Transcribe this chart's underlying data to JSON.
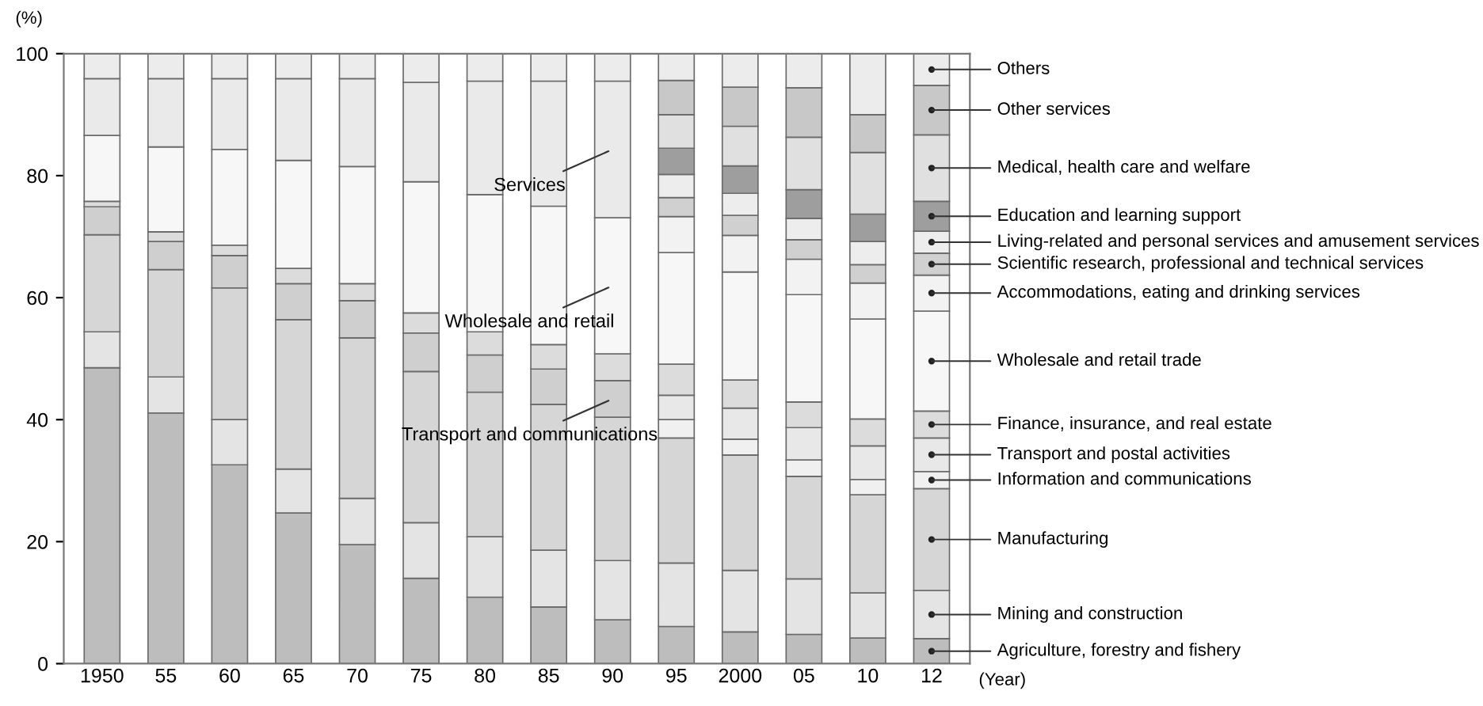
{
  "chart_data": {
    "type": "bar",
    "stacked": true,
    "ylabel": "(%)",
    "xlabel": "(Year)",
    "categories": [
      "1950",
      "55",
      "60",
      "65",
      "70",
      "75",
      "80",
      "85",
      "90",
      "95",
      "2000",
      "05",
      "10",
      "12"
    ],
    "ylim": [
      0,
      100
    ],
    "yticks": [
      0,
      20,
      40,
      60,
      80,
      100
    ],
    "grid": false,
    "series": [
      {
        "name": "Agriculture, forestry and fishery",
        "color": "#bdbdbd",
        "values": [
          48.5,
          41.1,
          32.6,
          24.7,
          19.5,
          14.0,
          10.9,
          9.3,
          7.2,
          6.1,
          5.2,
          4.8,
          4.2,
          4.1
        ]
      },
      {
        "name": "Mining and construction",
        "color": "#e4e4e4",
        "values": [
          5.9,
          5.9,
          7.4,
          7.2,
          7.6,
          9.1,
          9.9,
          9.3,
          9.7,
          10.4,
          10.1,
          9.1,
          7.4,
          7.9
        ]
      },
      {
        "name": "Manufacturing",
        "color": "#d6d6d6",
        "values": [
          15.9,
          17.6,
          21.6,
          24.5,
          26.3,
          24.8,
          23.7,
          23.9,
          23.5,
          20.5,
          18.9,
          16.8,
          16.1,
          16.7
        ]
      },
      {
        "name": "Transport and communications",
        "color": "#cfcfcf",
        "values": [
          4.6,
          4.6,
          5.3,
          5.9,
          6.1,
          6.3,
          6.1,
          5.8,
          6.0,
          null,
          null,
          null,
          null,
          null
        ]
      },
      {
        "name": "Information and communications",
        "color": "#f0f0f0",
        "values": [
          null,
          null,
          null,
          null,
          null,
          null,
          null,
          null,
          null,
          3.0,
          2.6,
          2.7,
          2.5,
          2.8
        ]
      },
      {
        "name": "Transport and postal activities",
        "color": "#e8e8e8",
        "values": [
          null,
          null,
          null,
          null,
          null,
          null,
          null,
          null,
          null,
          4.0,
          5.1,
          5.3,
          5.5,
          5.5
        ]
      },
      {
        "name": "Finance, insurance, and real estate",
        "color": "#dcdcdc",
        "values": [
          0.9,
          1.6,
          1.7,
          2.5,
          2.8,
          3.3,
          3.8,
          4.0,
          4.4,
          5.1,
          4.6,
          4.2,
          4.4,
          4.4
        ]
      },
      {
        "name": "Wholesale and retail",
        "color": "#f7f7f7",
        "values": [
          10.8,
          13.9,
          15.7,
          17.7,
          19.2,
          21.5,
          22.5,
          22.7,
          22.3,
          null,
          null,
          null,
          null,
          null
        ]
      },
      {
        "name": "Wholesale and retail trade",
        "color": "#f7f7f7",
        "values": [
          null,
          null,
          null,
          null,
          null,
          null,
          null,
          null,
          null,
          18.3,
          17.7,
          17.6,
          16.4,
          16.4
        ]
      },
      {
        "name": "Accommodations, eating and drinking services",
        "color": "#f2f2f2",
        "values": [
          null,
          null,
          null,
          null,
          null,
          null,
          null,
          null,
          null,
          5.9,
          6.0,
          5.8,
          5.9,
          5.9
        ]
      },
      {
        "name": "Scientific research, professional and technical services",
        "color": "#d0d0d0",
        "values": [
          null,
          null,
          null,
          null,
          null,
          null,
          null,
          null,
          null,
          3.1,
          3.3,
          3.2,
          3.0,
          3.6
        ]
      },
      {
        "name": "Living-related and personal services and amusement services",
        "color": "#ededed",
        "values": [
          null,
          null,
          null,
          null,
          null,
          null,
          null,
          null,
          null,
          3.8,
          3.6,
          3.5,
          3.8,
          3.6
        ]
      },
      {
        "name": "Education and learning support",
        "color": "#9e9e9e",
        "values": [
          null,
          null,
          null,
          null,
          null,
          null,
          null,
          null,
          null,
          4.3,
          4.5,
          4.7,
          4.5,
          4.9
        ]
      },
      {
        "name": "Medical, health care and welfare",
        "color": "#e0e0e0",
        "values": [
          null,
          null,
          null,
          null,
          null,
          null,
          null,
          null,
          null,
          5.5,
          6.5,
          8.6,
          10.1,
          10.9
        ]
      },
      {
        "name": "Services",
        "color": "#eaeaea",
        "values": [
          9.3,
          11.2,
          11.6,
          13.4,
          14.4,
          16.3,
          18.6,
          20.5,
          22.4,
          null,
          null,
          null,
          null,
          null
        ]
      },
      {
        "name": "Other services",
        "color": "#c8c8c8",
        "values": [
          null,
          null,
          null,
          null,
          null,
          null,
          null,
          null,
          null,
          5.6,
          6.4,
          8.1,
          6.2,
          8.1
        ]
      },
      {
        "name": "Others",
        "color": "#ececec",
        "values": [
          4.1,
          4.1,
          4.1,
          4.1,
          4.1,
          4.7,
          4.5,
          4.5,
          4.5,
          4.4,
          5.5,
          5.6,
          10.0,
          5.2
        ]
      }
    ]
  }
}
